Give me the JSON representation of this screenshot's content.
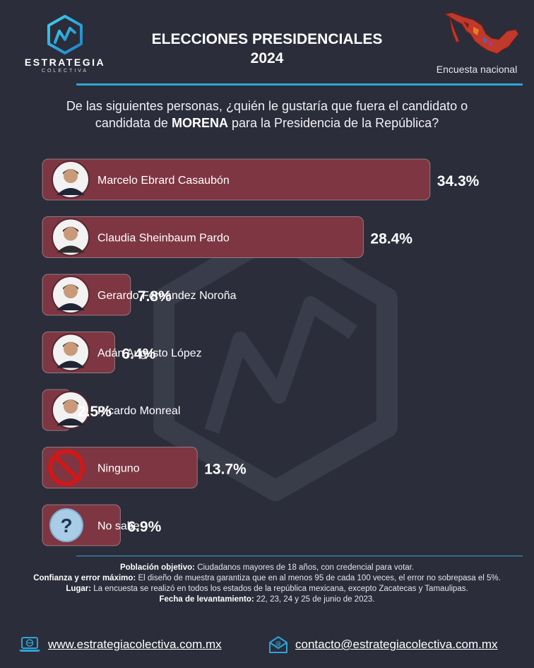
{
  "header": {
    "brand": "ESTRATEGIA",
    "brand_sub": "COLECTIVA",
    "title_line1": "ELECCIONES PRESIDENCIALES",
    "title_line2": "2024",
    "survey_type": "Encuesta nacional"
  },
  "question": {
    "text_before": "De las siguientes personas, ¿quién le gustaría que fuera el candidato o candidata de ",
    "emphasis": "MORENA",
    "text_after": " para la Presidencia de la República?"
  },
  "chart_data": {
    "type": "bar",
    "orientation": "horizontal",
    "categories": [
      "Marcelo Ebrard Casaubón",
      "Claudia Sheinbaum Pardo",
      "Gerardo Fernández Noroña",
      "Adán Augusto López",
      "Ricardo Monreal",
      "Ninguno",
      "No sabe"
    ],
    "values": [
      34.3,
      28.4,
      7.8,
      6.4,
      2.5,
      13.7,
      6.9
    ],
    "value_labels": [
      "34.3%",
      "28.4%",
      "7.8%",
      "6.4%",
      "2.5%",
      "13.7%",
      "6.9%"
    ],
    "icons": [
      "person-avatar",
      "person-avatar",
      "person-avatar",
      "person-avatar",
      "person-avatar",
      "prohibited-icon",
      "question-icon"
    ],
    "unit": "%",
    "bar_color": "#7d3642",
    "title": "",
    "xlabel": "",
    "ylabel": "",
    "grid": false,
    "legend": "none"
  },
  "colors": {
    "background": "#2b2d3a",
    "bar": "#7d3642",
    "accent": "#2ea3d8",
    "text": "#ffffff"
  },
  "footnotes": {
    "population_label": "Población objetivo:",
    "population_text": " Ciudadanos mayores de 18 años, con credencial para votar.",
    "confidence_label": "Confianza y error máximo:",
    "confidence_text": " El diseño de muestra garantiza que en al menos 95 de cada 100 veces, el error no sobrepasa el 5%.",
    "place_label": "Lugar:",
    "place_text": " La encuesta se realizó en todos los estados de la república mexicana, excepto Zacatecas y Tamaulipas.",
    "date_label": "Fecha de levantamiento:",
    "date_text": " 22, 23, 24 y 25 de junio de 2023."
  },
  "contact": {
    "website": "www.estrategiacolectiva.com.mx",
    "email": "contacto@estrategiacolectiva.com.mx"
  }
}
